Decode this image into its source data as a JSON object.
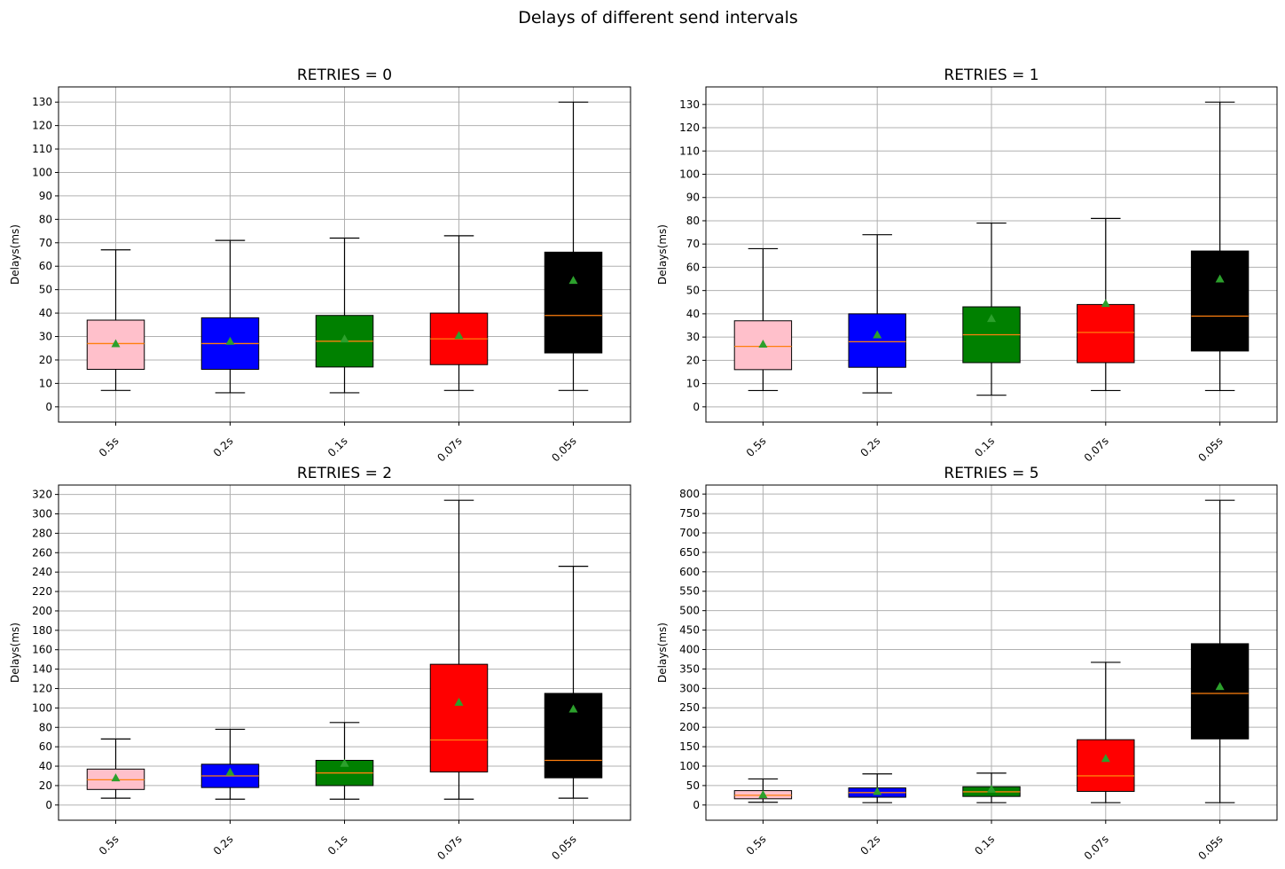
{
  "figure": {
    "title": "Delays of different send intervals"
  },
  "colors": {
    "grid": "#b0b0b0",
    "median": "#ff7f0e",
    "mean": "#2ca02c",
    "axes": "#000000"
  },
  "chart_data": [
    {
      "type": "box",
      "title": "RETRIES = 0",
      "ylabel": "Delays(ms)",
      "ylim": [
        0,
        130
      ],
      "yticks": [
        0,
        10,
        20,
        30,
        40,
        50,
        60,
        70,
        80,
        90,
        100,
        110,
        120,
        130
      ],
      "categories": [
        "0.5s",
        "0.2s",
        "0.1s",
        "0.07s",
        "0.05s"
      ],
      "box_colors": [
        "#ffc0cb",
        "#0000ff",
        "#008000",
        "#ff0000",
        "#000000"
      ],
      "boxes": [
        {
          "whislo": 7,
          "q1": 16,
          "med": 27,
          "q3": 37,
          "whishi": 67,
          "mean": 27
        },
        {
          "whislo": 6,
          "q1": 16,
          "med": 27,
          "q3": 38,
          "whishi": 71,
          "mean": 28
        },
        {
          "whislo": 6,
          "q1": 17,
          "med": 28,
          "q3": 39,
          "whishi": 72,
          "mean": 29
        },
        {
          "whislo": 7,
          "q1": 18,
          "med": 29,
          "q3": 40,
          "whishi": 73,
          "mean": 30.5
        },
        {
          "whislo": 7,
          "q1": 23,
          "med": 39,
          "q3": 66,
          "whishi": 130,
          "mean": 54
        }
      ]
    },
    {
      "type": "box",
      "title": "RETRIES = 1",
      "ylabel": "Delays(ms)",
      "ylim": [
        0,
        131
      ],
      "yticks": [
        0,
        10,
        20,
        30,
        40,
        50,
        60,
        70,
        80,
        90,
        100,
        110,
        120,
        130
      ],
      "categories": [
        "0.5s",
        "0.2s",
        "0.1s",
        "0.07s",
        "0.05s"
      ],
      "box_colors": [
        "#ffc0cb",
        "#0000ff",
        "#008000",
        "#ff0000",
        "#000000"
      ],
      "boxes": [
        {
          "whislo": 7,
          "q1": 16,
          "med": 26,
          "q3": 37,
          "whishi": 68,
          "mean": 27
        },
        {
          "whislo": 6,
          "q1": 17,
          "med": 28,
          "q3": 40,
          "whishi": 74,
          "mean": 31
        },
        {
          "whislo": 5,
          "q1": 19,
          "med": 31,
          "q3": 43,
          "whishi": 79,
          "mean": 38
        },
        {
          "whislo": 7,
          "q1": 19,
          "med": 32,
          "q3": 44,
          "whishi": 81,
          "mean": 44.5
        },
        {
          "whislo": 7,
          "q1": 24,
          "med": 39,
          "q3": 67,
          "whishi": 131,
          "mean": 55
        }
      ]
    },
    {
      "type": "box",
      "title": "RETRIES = 2",
      "ylabel": "Delays(ms)",
      "ylim": [
        0,
        314
      ],
      "yticks": [
        0,
        20,
        40,
        60,
        80,
        100,
        120,
        140,
        160,
        180,
        200,
        220,
        240,
        260,
        280,
        300,
        320
      ],
      "categories": [
        "0.5s",
        "0.2s",
        "0.1s",
        "0.07s",
        "0.05s"
      ],
      "box_colors": [
        "#ffc0cb",
        "#0000ff",
        "#008000",
        "#ff0000",
        "#000000"
      ],
      "boxes": [
        {
          "whislo": 7,
          "q1": 16,
          "med": 26,
          "q3": 37,
          "whishi": 68,
          "mean": 28
        },
        {
          "whislo": 6,
          "q1": 18,
          "med": 30,
          "q3": 42,
          "whishi": 78,
          "mean": 34
        },
        {
          "whislo": 6,
          "q1": 20,
          "med": 33,
          "q3": 46,
          "whishi": 85,
          "mean": 43
        },
        {
          "whislo": 6,
          "q1": 34,
          "med": 67,
          "q3": 145,
          "whishi": 314,
          "mean": 106
        },
        {
          "whislo": 7,
          "q1": 28,
          "med": 46,
          "q3": 115,
          "whishi": 246,
          "mean": 99
        }
      ]
    },
    {
      "type": "box",
      "title": "RETRIES = 5",
      "ylabel": "Delays(ms)",
      "ylim": [
        0,
        784
      ],
      "yticks": [
        0,
        50,
        100,
        150,
        200,
        250,
        300,
        350,
        400,
        450,
        500,
        550,
        600,
        650,
        700,
        750,
        800
      ],
      "categories": [
        "0.5s",
        "0.2s",
        "0.1s",
        "0.07s",
        "0.05s"
      ],
      "box_colors": [
        "#ffc0cb",
        "#0000ff",
        "#008000",
        "#ff0000",
        "#000000"
      ],
      "boxes": [
        {
          "whislo": 7,
          "q1": 16,
          "med": 25,
          "q3": 37,
          "whishi": 67,
          "mean": 27
        },
        {
          "whislo": 6,
          "q1": 20,
          "med": 32,
          "q3": 44,
          "whishi": 80,
          "mean": 35
        },
        {
          "whislo": 6,
          "q1": 22,
          "med": 34,
          "q3": 47,
          "whishi": 82,
          "mean": 41
        },
        {
          "whislo": 6,
          "q1": 35,
          "med": 75,
          "q3": 168,
          "whishi": 367,
          "mean": 120
        },
        {
          "whislo": 6,
          "q1": 170,
          "med": 287,
          "q3": 415,
          "whishi": 784,
          "mean": 305
        }
      ]
    }
  ]
}
